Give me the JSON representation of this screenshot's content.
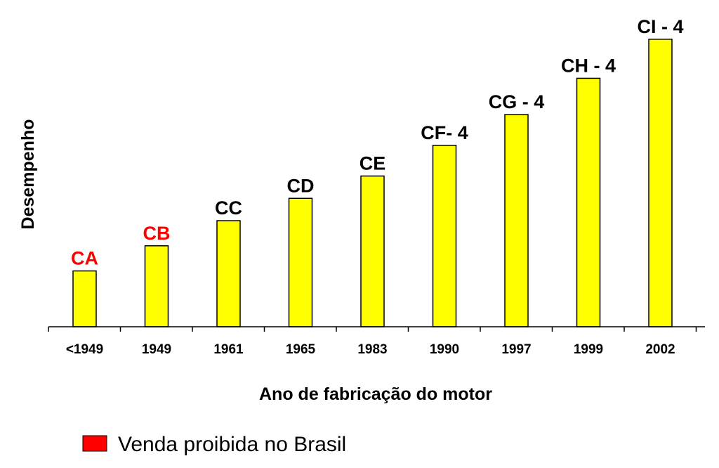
{
  "chart_data": {
    "type": "bar",
    "title": "",
    "xlabel": "Ano de fabricação do motor",
    "ylabel": "Desempenho",
    "categories": [
      "<1949",
      "1949",
      "1961",
      "1965",
      "1983",
      "1990",
      "1997",
      "1999",
      "2002"
    ],
    "bar_labels": [
      "CA",
      "CB",
      "CC",
      "CD",
      "CE",
      "CF- 4",
      "CG - 4",
      "CH - 4",
      "CI - 4"
    ],
    "values": [
      2.0,
      2.9,
      3.8,
      4.6,
      5.4,
      6.5,
      7.6,
      8.9,
      10.3
    ],
    "prohibited": [
      true,
      true,
      false,
      false,
      false,
      false,
      false,
      false,
      false
    ],
    "ylim": [
      0,
      11
    ],
    "grid": false,
    "legend": {
      "placement": "bottom-left",
      "entries": [
        {
          "label": "Venda proibida no Brasil",
          "color": "#ff0000"
        }
      ]
    },
    "colors": {
      "bar_fill": "#ffff00",
      "bar_stroke": "#000000",
      "label_default": "#000000",
      "label_prohibited": "#ff0000"
    }
  }
}
